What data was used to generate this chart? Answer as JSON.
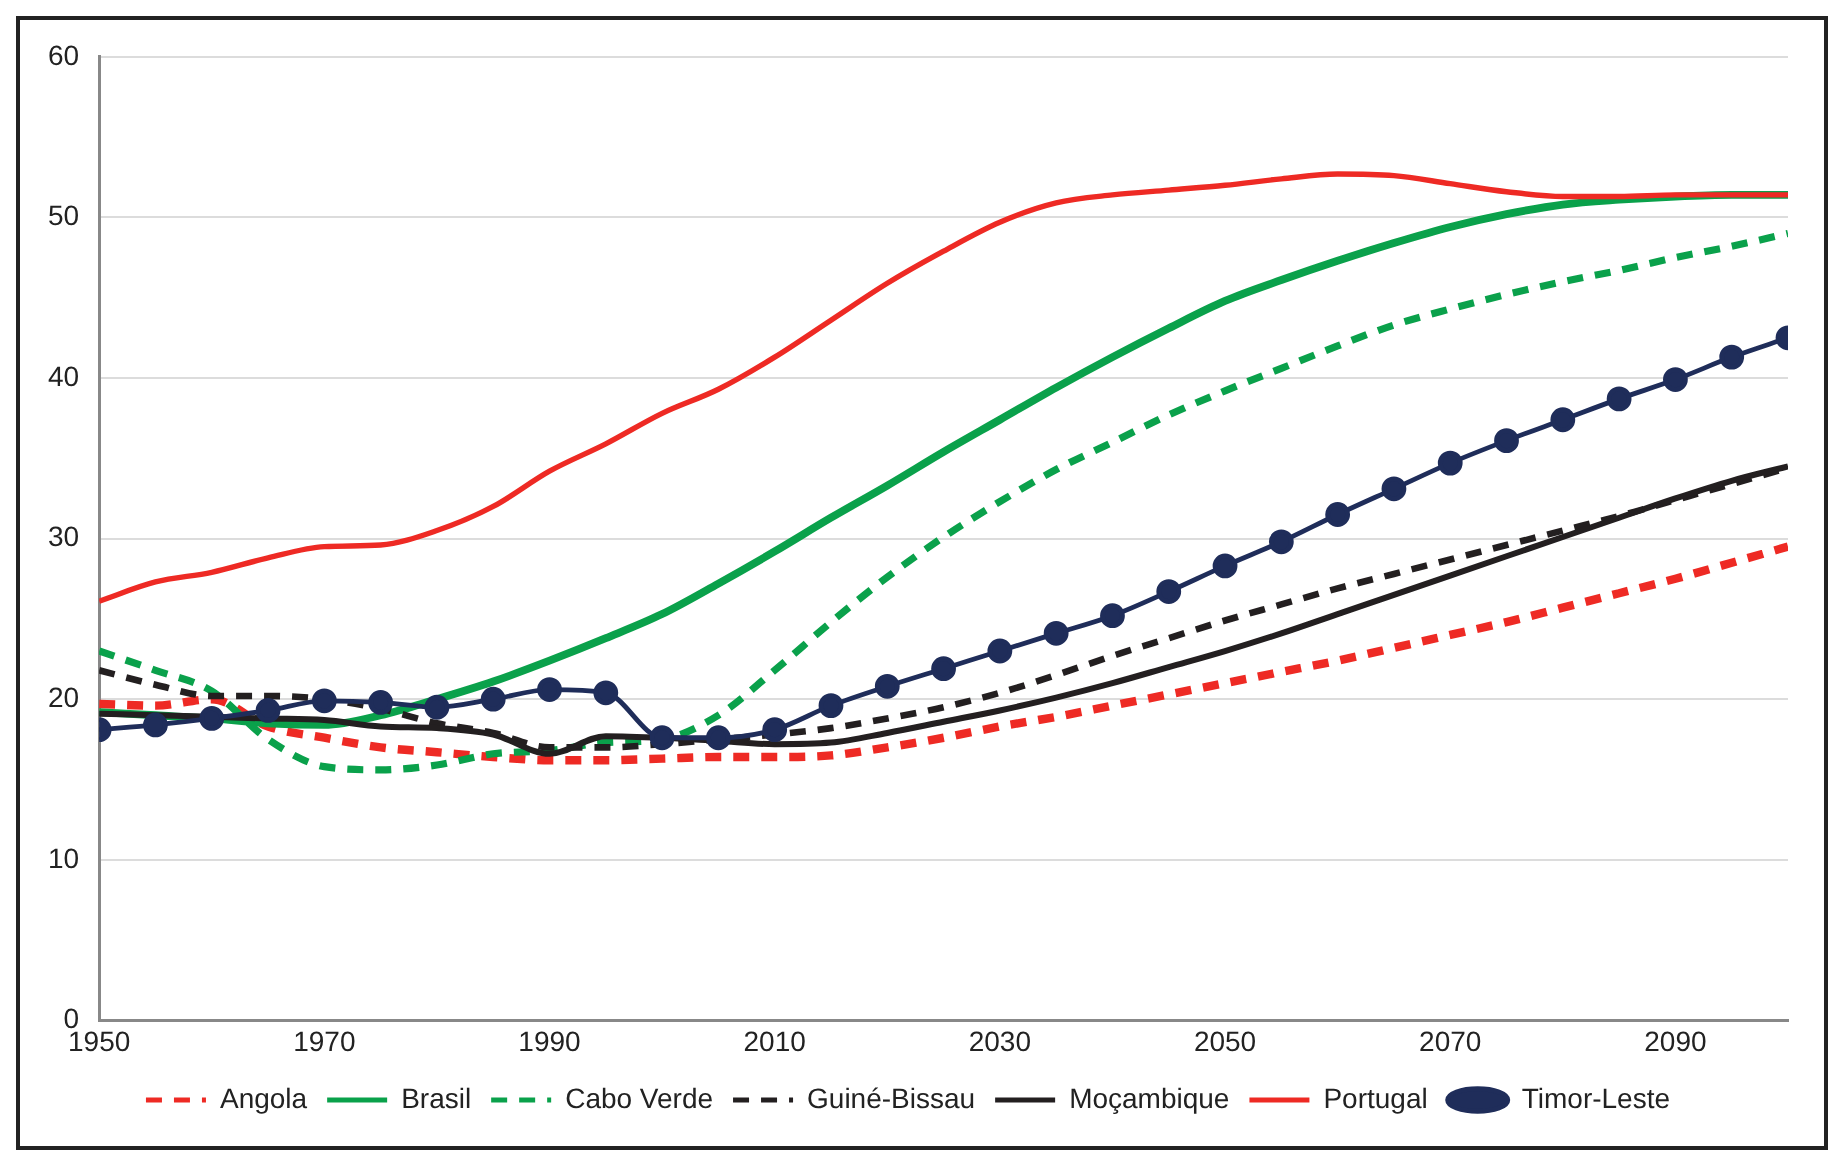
{
  "chart_data": {
    "type": "line",
    "x": [
      1950,
      1955,
      1960,
      1965,
      1970,
      1975,
      1980,
      1985,
      1990,
      1995,
      2000,
      2005,
      2010,
      2015,
      2020,
      2025,
      2030,
      2035,
      2040,
      2045,
      2050,
      2055,
      2060,
      2065,
      2070,
      2075,
      2080,
      2085,
      2090,
      2095,
      2100
    ],
    "xlim": [
      1950,
      2100
    ],
    "xticks": [
      1950,
      1970,
      1990,
      2010,
      2030,
      2050,
      2070,
      2090
    ],
    "ylim": [
      0,
      60
    ],
    "yticks": [
      0,
      10,
      20,
      30,
      40,
      50,
      60
    ],
    "grid": "y",
    "legend": "bottom",
    "marker": "none",
    "series": [
      {
        "name": "Angola",
        "color": "#ee2a24",
        "line_style": "dashed",
        "values": [
          19.7,
          19.6,
          20.0,
          18.3,
          17.6,
          17.0,
          16.7,
          16.4,
          16.2,
          16.2,
          16.3,
          16.4,
          16.4,
          16.5,
          17.0,
          17.6,
          18.3,
          18.9,
          19.6,
          20.3,
          21.0,
          21.7,
          22.4,
          23.2,
          24.0,
          24.8,
          25.7,
          26.6,
          27.5,
          28.5,
          29.5
        ]
      },
      {
        "name": "Brasil",
        "color": "#0aa14b",
        "line_style": "solid",
        "values": [
          19.2,
          19.0,
          18.8,
          18.5,
          18.4,
          19.0,
          20.0,
          21.1,
          22.4,
          23.8,
          25.3,
          27.2,
          29.2,
          31.3,
          33.3,
          35.4,
          37.4,
          39.4,
          41.3,
          43.1,
          44.8,
          46.1,
          47.3,
          48.4,
          49.4,
          50.2,
          50.8,
          51.1,
          51.3,
          51.4,
          51.4
        ]
      },
      {
        "name": "Cabo Verde",
        "color": "#0aa14b",
        "line_style": "dashed",
        "values": [
          23.0,
          21.8,
          20.5,
          17.5,
          15.8,
          15.6,
          15.9,
          16.6,
          16.8,
          17.3,
          17.5,
          19.0,
          21.8,
          24.8,
          27.6,
          30.1,
          32.3,
          34.3,
          36.0,
          37.7,
          39.2,
          40.6,
          42.0,
          43.3,
          44.3,
          45.2,
          46.0,
          46.7,
          47.5,
          48.2,
          49.0
        ]
      },
      {
        "name": "Guiné-Bissau",
        "color": "#231f20",
        "line_style": "dashed",
        "values": [
          21.8,
          20.9,
          20.2,
          20.2,
          20.0,
          19.4,
          18.5,
          17.9,
          17.0,
          17.0,
          17.2,
          17.5,
          17.8,
          18.2,
          18.8,
          19.5,
          20.4,
          21.5,
          22.7,
          23.8,
          24.9,
          25.9,
          26.9,
          27.8,
          28.7,
          29.6,
          30.5,
          31.4,
          32.4,
          33.4,
          34.4
        ]
      },
      {
        "name": "Moçambique",
        "color": "#231f20",
        "line_style": "solid",
        "values": [
          19.1,
          19.0,
          18.9,
          18.8,
          18.7,
          18.3,
          18.2,
          17.8,
          16.6,
          17.7,
          17.6,
          17.4,
          17.2,
          17.3,
          17.9,
          18.6,
          19.3,
          20.1,
          21.0,
          22.0,
          23.0,
          24.1,
          25.3,
          26.5,
          27.7,
          28.9,
          30.1,
          31.3,
          32.5,
          33.6,
          34.5
        ]
      },
      {
        "name": "Portugal",
        "color": "#ee2a24",
        "line_style": "solid",
        "values": [
          26.1,
          27.3,
          27.9,
          28.8,
          29.5,
          29.6,
          30.5,
          32.0,
          34.2,
          35.9,
          37.8,
          39.3,
          41.3,
          43.6,
          45.9,
          47.9,
          49.7,
          50.9,
          51.4,
          51.7,
          52.0,
          52.4,
          52.7,
          52.6,
          52.1,
          51.6,
          51.3,
          51.3,
          51.4,
          51.4,
          51.4
        ]
      },
      {
        "name": "Timor-Leste",
        "color": "#1f2d5a",
        "line_style": "solid",
        "marker": "circle",
        "values": [
          18.1,
          18.4,
          18.8,
          19.3,
          19.9,
          19.8,
          19.5,
          20.0,
          20.6,
          20.4,
          17.6,
          17.6,
          18.1,
          19.6,
          20.8,
          21.9,
          23.0,
          24.1,
          25.2,
          26.7,
          28.3,
          29.8,
          31.5,
          33.1,
          34.7,
          36.1,
          37.4,
          38.7,
          39.9,
          41.3,
          42.5
        ]
      }
    ]
  }
}
